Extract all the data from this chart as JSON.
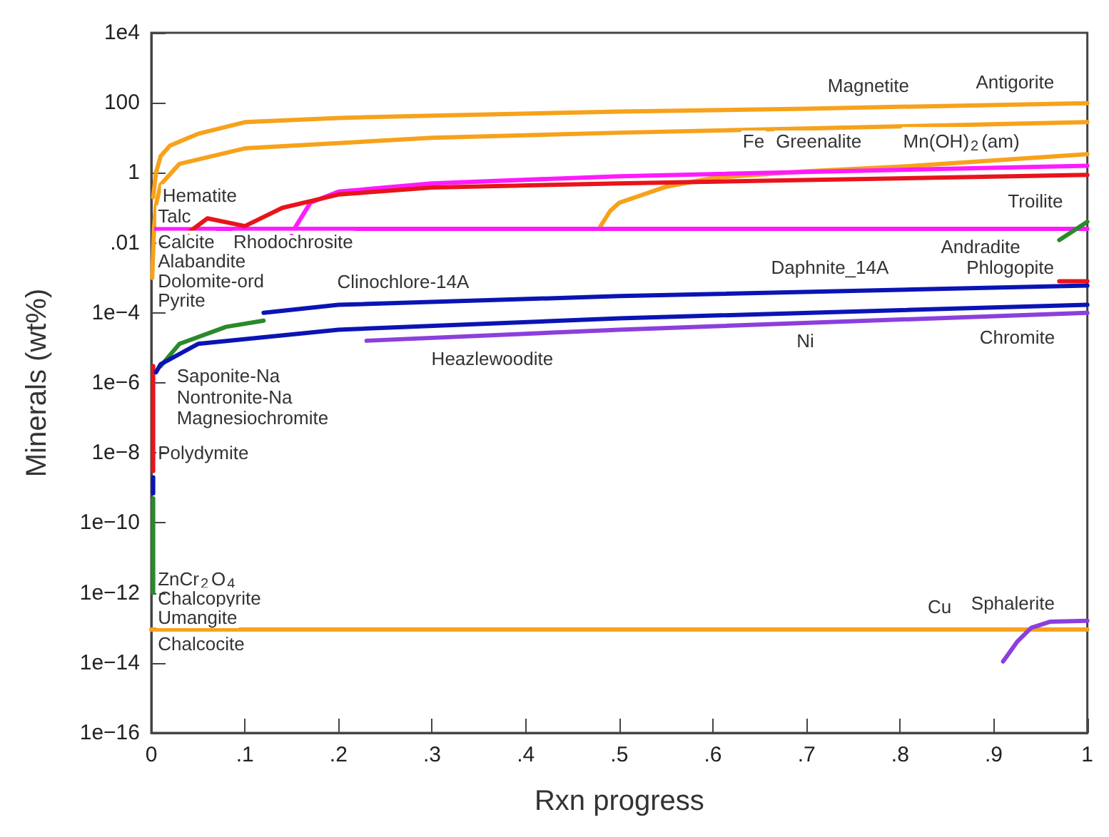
{
  "chart_data": {
    "type": "line",
    "xlabel": "Rxn progress",
    "ylabel": "Minerals (wt%)",
    "log": "y",
    "grid": false,
    "marker": "none",
    "line_style": "solid",
    "xlim": [
      0,
      1
    ],
    "xticks": [
      0,
      {
        "value": 0.1,
        "label": ".1"
      },
      {
        "value": 0.2,
        "label": ".2"
      },
      {
        "value": 0.3,
        "label": ".3"
      },
      {
        "value": 0.4,
        "label": ".4"
      },
      {
        "value": 0.5,
        "label": ".5"
      },
      {
        "value": 0.6,
        "label": ".6"
      },
      {
        "value": 0.7,
        "label": ".7"
      },
      {
        "value": 0.8,
        "label": ".8"
      },
      {
        "value": 0.9,
        "label": ".9"
      },
      1
    ],
    "ylim": [
      1e-16,
      10000
    ],
    "yticks": [
      {
        "value": 1e-16,
        "label": "1e−16"
      },
      {
        "value": 1e-14,
        "label": "1e−14"
      },
      {
        "value": 1e-12,
        "label": "1e−12"
      },
      {
        "value": 1e-10,
        "label": "1e−10"
      },
      {
        "value": 1e-08,
        "label": "1e−8"
      },
      {
        "value": 1e-06,
        "label": "1e−6"
      },
      {
        "value": 0.0001,
        "label": "1e−4"
      },
      {
        "value": 0.01,
        "label": ".01"
      },
      1,
      100,
      {
        "value": 10000,
        "label": "1e4"
      }
    ],
    "series": [
      {
        "color": "#f7a21b",
        "x": [
          0.002,
          0.005,
          0.01,
          0.02,
          0.05,
          0.1,
          0.2,
          0.3,
          0.5,
          0.7,
          1
        ],
        "values": [
          0.2,
          1,
          3,
          6,
          13,
          28,
          37,
          43,
          56,
          68,
          98
        ]
      },
      {
        "color": "#f7a21b",
        "x": [
          0.001,
          0.003,
          0.005,
          0.01,
          0.03,
          0.1,
          0.3,
          0.5,
          1
        ],
        "values": [
          0.001,
          0.03,
          0.12,
          0.46,
          1.8,
          5,
          10,
          14,
          28
        ]
      },
      {
        "color": "#f7a21b",
        "x": [
          0.48,
          0.49,
          0.5,
          0.55,
          0.6,
          0.7,
          0.8,
          1
        ],
        "values": [
          0.03,
          0.08,
          0.14,
          0.4,
          0.72,
          1.1,
          1.5,
          3.4
        ]
      },
      {
        "color": "#f7a21b",
        "x": [
          0,
          1
        ],
        "values": [
          9e-14,
          9e-14
        ]
      },
      {
        "color": "#ff1aff",
        "x": [
          0.005,
          1
        ],
        "values": [
          0.025,
          0.025
        ]
      },
      {
        "color": "#ff1aff",
        "x": [
          0.15,
          0.17,
          0.2,
          0.3,
          0.5,
          1
        ],
        "values": [
          0.019,
          0.14,
          0.29,
          0.5,
          0.8,
          1.6
        ]
      },
      {
        "color": "#e8141b",
        "x": [
          0.04,
          0.06,
          0.1,
          0.14,
          0.2,
          0.3,
          0.5,
          1
        ],
        "values": [
          0.02,
          0.05,
          0.03,
          0.1,
          0.24,
          0.38,
          0.5,
          0.87
        ]
      },
      {
        "color": "#e8141b",
        "x": [
          0.002,
          0.002
        ],
        "values": [
          3e-06,
          3e-09
        ]
      },
      {
        "color": "#0a14b4",
        "x": [
          0.002,
          0.002
        ],
        "values": [
          2e-09,
          7e-10
        ]
      },
      {
        "color": "#2a8a2a",
        "x": [
          0.002,
          0.002
        ],
        "values": [
          5e-10,
          1e-12
        ]
      },
      {
        "color": "#2a8a2a",
        "x": [
          0.01,
          0.03,
          0.08,
          0.12
        ],
        "values": [
          3e-06,
          1.3e-05,
          4e-05,
          6e-05
        ]
      },
      {
        "color": "#0a14b4",
        "x": [
          0.12,
          0.2,
          0.5,
          1
        ],
        "values": [
          0.0001,
          0.00017,
          0.0003,
          0.0006
        ]
      },
      {
        "color": "#0a14b4",
        "x": [
          0.005,
          0.01,
          0.05,
          0.2,
          0.5,
          1
        ],
        "values": [
          2e-06,
          3.4e-06,
          1.3e-05,
          3.3e-05,
          7e-05,
          0.00017
        ]
      },
      {
        "color": "#8c3fdc",
        "x": [
          0.23,
          0.5,
          1
        ],
        "values": [
          1.6e-05,
          3.3e-05,
          0.0001
        ]
      },
      {
        "color": "#2a8a2a",
        "x": [
          0.97,
          1
        ],
        "values": [
          0.012,
          0.04
        ]
      },
      {
        "color": "#e8141b",
        "x": [
          0.97,
          1
        ],
        "values": [
          0.0008,
          0.0008
        ]
      },
      {
        "color": "#8c3fdc",
        "x": [
          0.91,
          0.925,
          0.94,
          0.96,
          1
        ],
        "values": [
          1.1e-14,
          4e-14,
          1e-13,
          1.5e-13,
          1.6e-13
        ]
      }
    ],
    "annotations": [
      "Antigorite",
      "Magnetite",
      "Fe",
      "Greenalite",
      "Mn(OH)$_{2}$(am)",
      "Troilite",
      "Andradite",
      "Daphnite_14A",
      "Phlogopite",
      "Chromite",
      "Ni",
      "Hematite",
      "Talc",
      "Calcite",
      "Rhodochrosite",
      "Alabandite",
      "Dolomite-ord",
      "Pyrite",
      "Clinochlore-14A",
      "Heazlewoodite",
      "Saponite-Na",
      "Nontronite-Na",
      "Magnesiochromite",
      "Polydymite",
      "ZnCr$_{2}$O$_{4}$",
      "Chalcopyrite",
      "Umangite",
      "Chalcocite",
      "Cu",
      "Sphalerite"
    ]
  }
}
